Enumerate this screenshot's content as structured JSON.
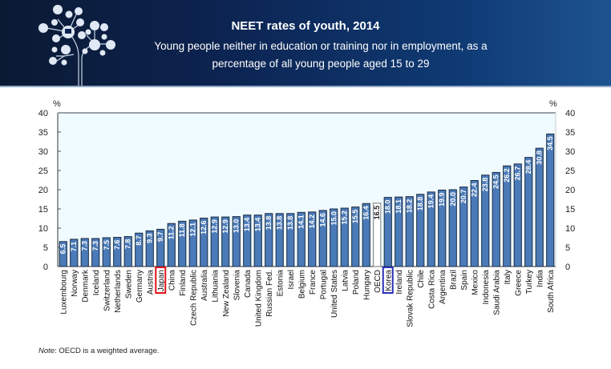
{
  "header": {
    "title": "NEET rates of youth, 2014",
    "subtitle": "Young people neither in education or training nor in employment, as a percentage of all young people aged 15 to 29"
  },
  "note": {
    "prefix": "Note",
    "text": ": OECD is a weighted average."
  },
  "colors": {
    "bar": "#4a7ab8",
    "bar_border": "#1c2b40",
    "oecd_bar": "#ffffff",
    "plot_bg": "#f0fbff",
    "japan_highlight": "#e0151b",
    "korea_highlight": "#2a2fb8"
  },
  "chart_data": {
    "type": "bar",
    "title": "NEET rates of youth, 2014",
    "xlabel": "",
    "ylabel": "%",
    "ylabel_right": "%",
    "ylim": [
      0,
      40
    ],
    "yticks": [
      0,
      5,
      10,
      15,
      20,
      25,
      30,
      35,
      40
    ],
    "grid": false,
    "categories": [
      "Luxembourg",
      "Norway",
      "Denmark",
      "Iceland",
      "Switzerland",
      "Netherlands",
      "Sweden",
      "Germany",
      "Austria",
      "Japan",
      "China",
      "Finland",
      "Czech Republic",
      "Australia",
      "Lithuania",
      "New Zealand",
      "Slovenia",
      "Canada",
      "United Kingdom",
      "Russian Fed.",
      "Estonia",
      "Israel",
      "Belgium",
      "France",
      "Portugal",
      "United States",
      "Latvia",
      "Poland",
      "Hungary",
      "OECD",
      "Korea",
      "Ireland",
      "Slovak Republic",
      "Chile",
      "Costa Rica",
      "Argentina",
      "Brazil",
      "Spain",
      "Mexico",
      "Indonesia",
      "Saudi Arabia",
      "Italy",
      "Greece",
      "Turkey",
      "India",
      "South Africa"
    ],
    "values": [
      6.5,
      7.1,
      7.3,
      7.3,
      7.5,
      7.6,
      7.8,
      8.7,
      9.3,
      9.7,
      11.2,
      11.8,
      12.1,
      12.6,
      12.9,
      12.9,
      13.0,
      13.4,
      13.4,
      13.8,
      13.8,
      13.8,
      14.1,
      14.2,
      14.6,
      15.0,
      15.2,
      15.5,
      16.4,
      16.5,
      18.0,
      18.1,
      18.2,
      18.8,
      19.4,
      19.9,
      20.0,
      20.7,
      22.4,
      23.8,
      24.5,
      26.2,
      26.7,
      28.4,
      30.8,
      34.5
    ],
    "value_labels": [
      "6.5",
      "7.1",
      "7.3",
      "7.3",
      "7.5",
      "7.6",
      "7.8",
      "8.7",
      "9.3",
      "9.7",
      "11.2",
      "11.8",
      "12.1",
      "12.6",
      "12.9",
      "12.9",
      "13.0",
      "13.4",
      "13.4",
      "13.8",
      "13.8",
      "13.8",
      "14.1",
      "14.2",
      "14.6",
      "15.0",
      "15.2",
      "15.5",
      "16.4",
      "16.5",
      "18.0",
      "18.1",
      "18.2",
      "18.8",
      "19.4",
      "19.9",
      "20.0",
      "20.7",
      "22.4",
      "23.8",
      "24.5",
      "26.2",
      "26.7",
      "28.4",
      "30.8",
      "34.5"
    ],
    "highlight": {
      "average": "OECD",
      "boxed_red": "Japan",
      "boxed_blue": "Korea"
    }
  }
}
